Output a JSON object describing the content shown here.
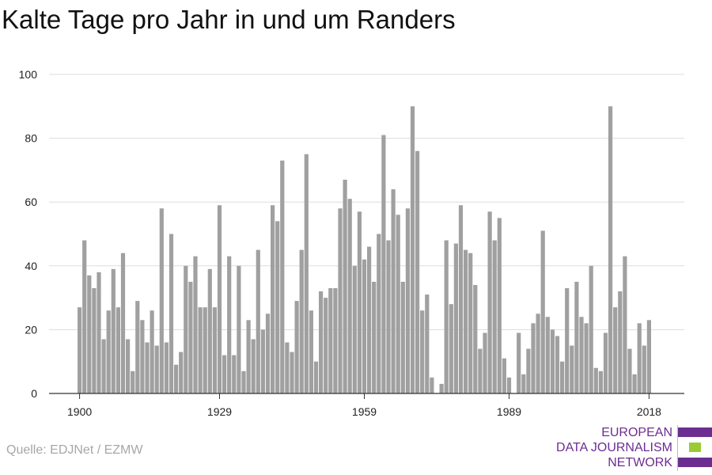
{
  "title": "Kalte Tage pro Jahr in und um Randers",
  "source": "Quelle: EDJNet / EZMW",
  "logo": {
    "lines": [
      "EUROPEAN",
      "DATA JOURNALISM",
      "NETWORK"
    ],
    "colors": [
      "#6c2d91",
      "#99cc33",
      "#6c2d91"
    ]
  },
  "colors": {
    "bar": "#a0a0a0",
    "grid": "#dddddd",
    "axis": "#333333"
  },
  "chart_data": {
    "type": "bar",
    "title": "Kalte Tage pro Jahr in und um Randers",
    "xlabel": "",
    "ylabel": "",
    "x_start": 1900,
    "x_ticks": [
      1900,
      1929,
      1959,
      1989,
      2018
    ],
    "y_ticks": [
      0,
      20,
      40,
      60,
      80,
      100
    ],
    "ylim": [
      0,
      100
    ],
    "grid": true,
    "values": [
      27,
      48,
      37,
      33,
      38,
      17,
      26,
      39,
      27,
      44,
      17,
      7,
      29,
      23,
      16,
      26,
      15,
      58,
      16,
      50,
      9,
      13,
      40,
      35,
      43,
      27,
      27,
      39,
      27,
      59,
      12,
      43,
      12,
      40,
      7,
      23,
      17,
      45,
      20,
      25,
      59,
      54,
      73,
      16,
      13,
      29,
      45,
      75,
      26,
      10,
      32,
      30,
      33,
      33,
      58,
      67,
      61,
      40,
      57,
      42,
      46,
      35,
      50,
      81,
      48,
      64,
      56,
      35,
      58,
      90,
      76,
      26,
      31,
      5,
      0,
      3,
      48,
      28,
      47,
      59,
      45,
      44,
      34,
      14,
      19,
      57,
      48,
      55,
      11,
      5,
      0,
      19,
      6,
      14,
      22,
      25,
      51,
      24,
      20,
      18,
      10,
      33,
      15,
      35,
      24,
      22,
      40,
      8,
      7,
      19,
      90,
      27,
      32,
      43,
      14,
      6,
      22,
      15,
      23
    ]
  }
}
